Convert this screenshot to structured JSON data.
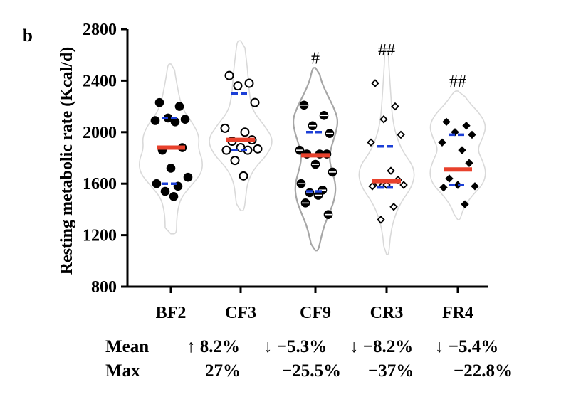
{
  "panel_label": "b",
  "chart_data": {
    "type": "violin",
    "ylabel": "Resting metabolic rate (Kcal/d)",
    "ylim": [
      800,
      2800
    ],
    "yticks": [
      800,
      1200,
      1600,
      2000,
      2400,
      2800
    ],
    "categories": [
      "BF2",
      "CF3",
      "CF9",
      "CR3",
      "FR4"
    ],
    "groups": [
      {
        "name": "BF2",
        "marker": "filled-circle",
        "violin_color": "#d9d9d9",
        "violin_range": [
          1210,
          2530
        ],
        "violin_width": [
          1,
          1,
          1.2,
          1.8,
          3.6,
          5.4,
          5.6,
          4.8,
          5.0,
          4.0,
          2.4,
          1.6,
          1.2,
          0.8,
          0.5
        ],
        "points": [
          2230,
          2200,
          2110,
          2100,
          2090,
          2080,
          1880,
          1860,
          1720,
          1650,
          1600,
          1580,
          1540,
          1500
        ],
        "median": 1880,
        "q1": 1600,
        "q3": 2110,
        "significance": ""
      },
      {
        "name": "CF3",
        "marker": "open-circle",
        "violin_color": "#d9d9d9",
        "violin_range": [
          1390,
          2710
        ],
        "violin_width": [
          0.6,
          0.9,
          1.2,
          2.4,
          4.8,
          5.8,
          4.2,
          2.2,
          1.6,
          1.4,
          1.2,
          0.9,
          0.6
        ],
        "points": [
          2440,
          2380,
          2360,
          2230,
          2030,
          2000,
          1940,
          1930,
          1880,
          1870,
          1860,
          1860,
          1780,
          1660
        ],
        "median": 1940,
        "q1": 1860,
        "q3": 2300,
        "significance": ""
      },
      {
        "name": "CF9",
        "marker": "half-filled-circle",
        "violin_color": "#a6a6a6",
        "violin_range": [
          1080,
          2500
        ],
        "violin_width": [
          0.5,
          1.0,
          1.6,
          2.6,
          3.4,
          3.6,
          3.0,
          2.4,
          2.8,
          3.6,
          4.0,
          3.2,
          2.0,
          1.0,
          0.5
        ],
        "points": [
          2210,
          2130,
          2050,
          1990,
          1860,
          1830,
          1830,
          1830,
          1750,
          1690,
          1600,
          1550,
          1530,
          1510,
          1450,
          1360
        ],
        "median": 1820,
        "q1": 1540,
        "q3": 2000,
        "significance": "#"
      },
      {
        "name": "CR3",
        "marker": "open-diamond",
        "violin_color": "#d9d9d9",
        "violin_range": [
          1050,
          2650
        ],
        "violin_width": [
          0.4,
          0.6,
          1.2,
          2.4,
          4.6,
          5.0,
          2.8,
          1.6,
          1.0,
          0.8,
          0.6,
          0.4,
          0.3
        ],
        "points": [
          2380,
          2200,
          2100,
          1980,
          1920,
          1700,
          1630,
          1600,
          1590,
          1590,
          1580,
          1420,
          1320
        ],
        "median": 1620,
        "q1": 1570,
        "q3": 1890,
        "significance": "##"
      },
      {
        "name": "FR4",
        "marker": "filled-diamond",
        "violin_color": "#d9d9d9",
        "violin_range": [
          1320,
          2320
        ],
        "violin_width": [
          0.4,
          1.0,
          2.4,
          4.4,
          5.0,
          4.4,
          3.4,
          4.4,
          5.0,
          4.0,
          2.0,
          0.6
        ],
        "points": [
          2080,
          2050,
          2000,
          1980,
          1920,
          1860,
          1760,
          1640,
          1590,
          1580,
          1570,
          1440
        ],
        "median": 1710,
        "q1": 1590,
        "q3": 1980,
        "significance": "##"
      }
    ],
    "colors": {
      "median": "#e8412c",
      "quartile": "#1c3fd6"
    }
  },
  "summary": {
    "rows": [
      {
        "label": "Mean",
        "cells": [
          "↑ 8.2%",
          "↓ −5.3%",
          "↓ −8.2%",
          "↓ −5.4%"
        ]
      },
      {
        "label": "Max",
        "cells": [
          "27%",
          "−25.5%",
          "−37%",
          "−22.8%"
        ]
      }
    ]
  }
}
